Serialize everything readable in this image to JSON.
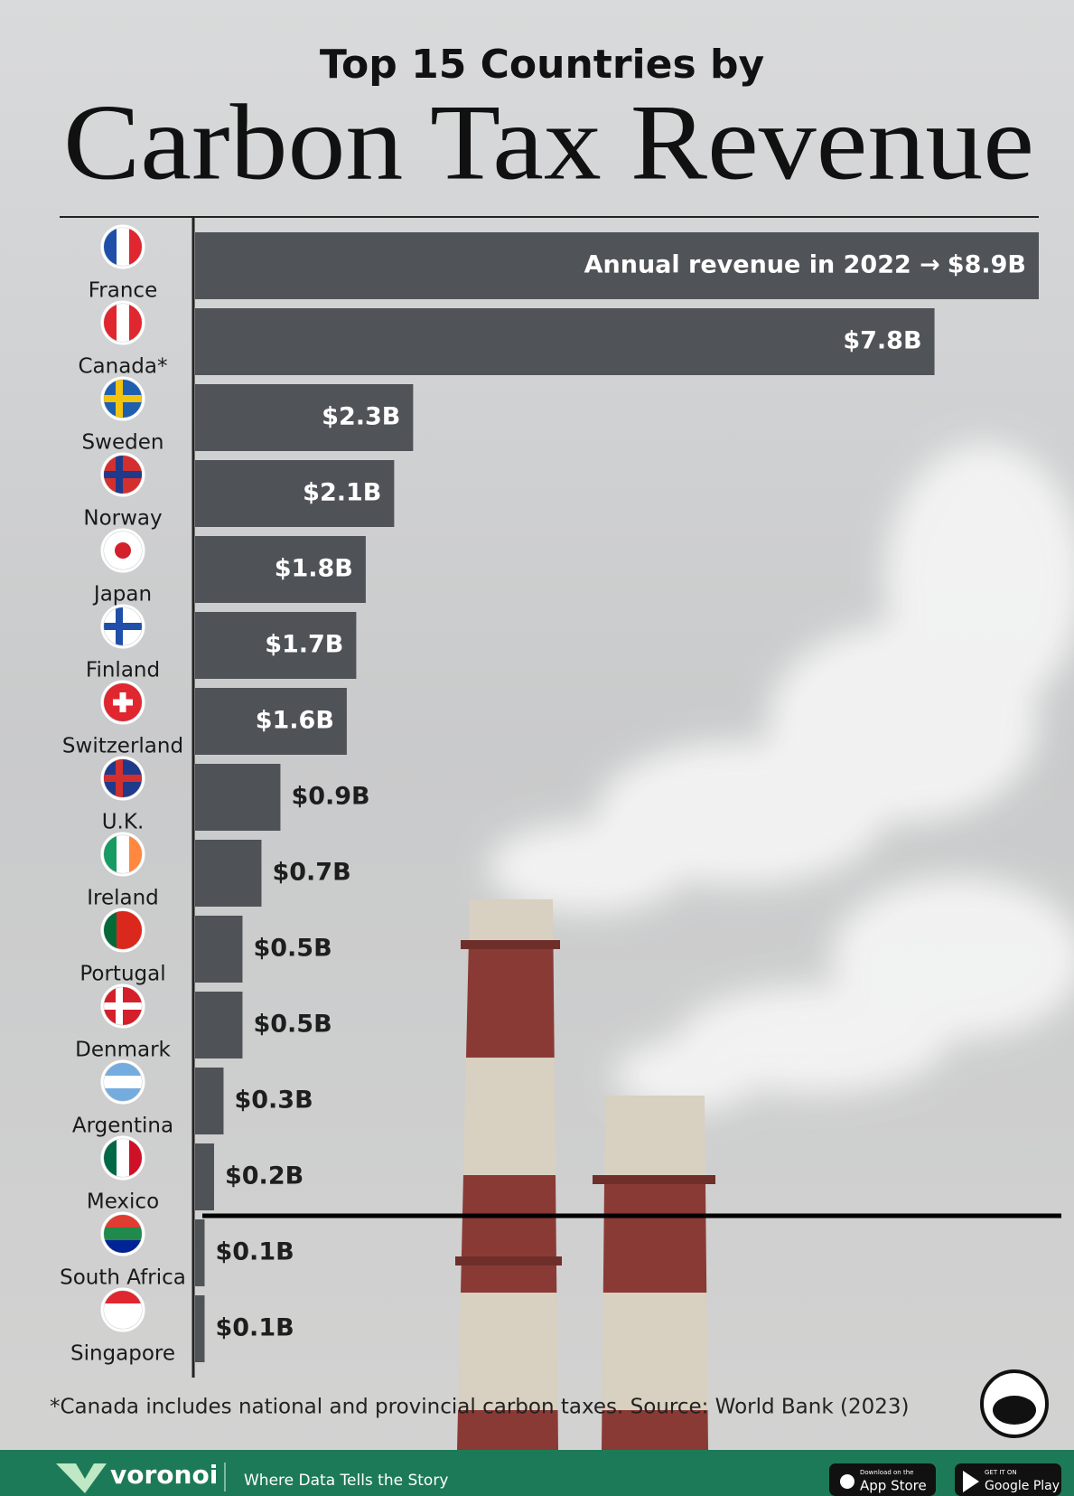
{
  "chart_data": {
    "type": "bar",
    "orientation": "horizontal",
    "kicker": "Top 15 Countries by",
    "title": "Carbon Tax Revenue",
    "annotation": "Annual revenue in 2022 →",
    "categories": [
      "France",
      "Canada*",
      "Sweden",
      "Norway",
      "Japan",
      "Finland",
      "Switzerland",
      "U.K.",
      "Ireland",
      "Portugal",
      "Denmark",
      "Argentina",
      "Mexico",
      "South Africa",
      "Singapore"
    ],
    "values": [
      8.9,
      7.8,
      2.3,
      2.1,
      1.8,
      1.7,
      1.6,
      0.9,
      0.7,
      0.5,
      0.5,
      0.3,
      0.2,
      0.1,
      0.1
    ],
    "value_labels": [
      "$8.9B",
      "$7.8B",
      "$2.3B",
      "$2.1B",
      "$1.8B",
      "$1.7B",
      "$1.6B",
      "$0.9B",
      "$0.7B",
      "$0.5B",
      "$0.5B",
      "$0.3B",
      "$0.2B",
      "$0.1B",
      "$0.1B"
    ],
    "color": "#3e4145",
    "footnote": "*Canada includes national and provincial carbon taxes. Source: World Bank (2023)"
  },
  "footer": {
    "brand": "voronoi",
    "tagline": "Where Data Tells the Story",
    "app_store_small": "Download on the",
    "app_store": "App Store",
    "google_play_small": "GET IT ON",
    "google_play": "Google Play"
  }
}
